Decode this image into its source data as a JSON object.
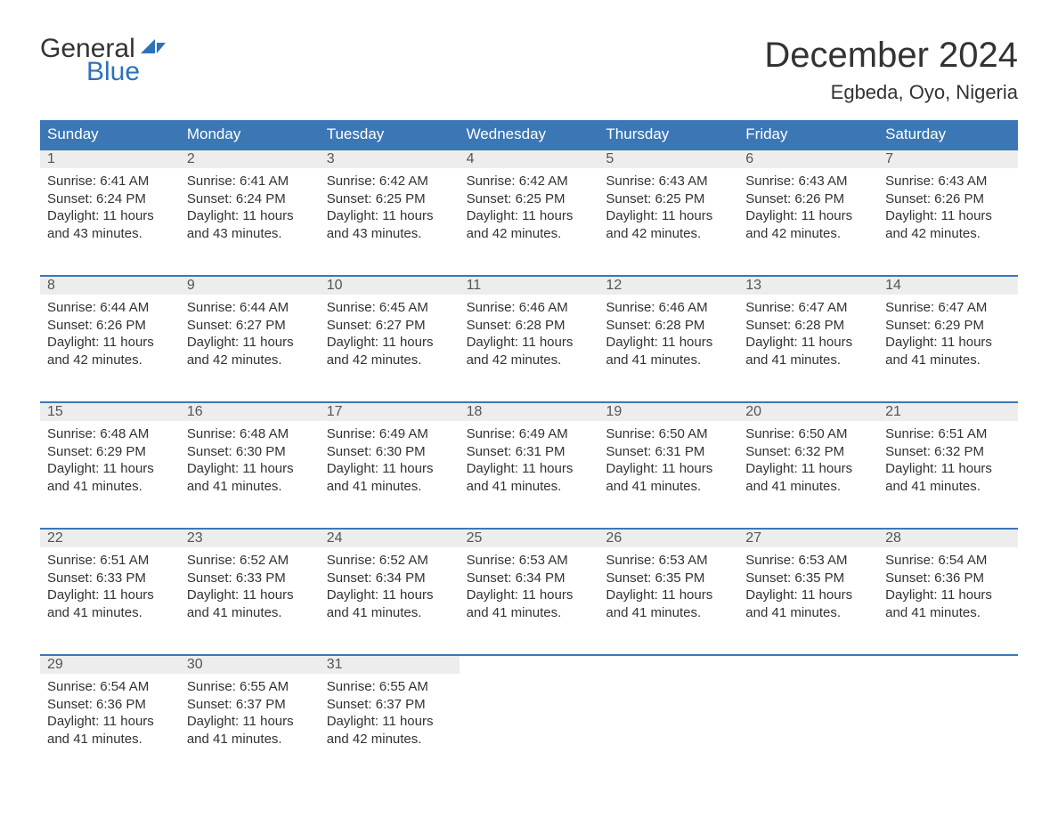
{
  "logo": {
    "text1": "General",
    "text2": "Blue"
  },
  "title": "December 2024",
  "location": "Egbeda, Oyo, Nigeria",
  "colors": {
    "header_bg": "#3b77b5",
    "header_text": "#ffffff",
    "date_bar_bg": "#ededed",
    "date_text": "#555555",
    "body_text": "#333333",
    "logo_blue": "#2d72b8",
    "week_border": "#3b77b5",
    "background": "#ffffff"
  },
  "typography": {
    "title_fontsize": 40,
    "location_fontsize": 22,
    "logo_fontsize": 30,
    "dayheader_fontsize": 17,
    "date_fontsize": 16,
    "body_fontsize": 15
  },
  "layout": {
    "columns": 7,
    "rows": 5,
    "cell_min_height": 118
  },
  "day_names": [
    "Sunday",
    "Monday",
    "Tuesday",
    "Wednesday",
    "Thursday",
    "Friday",
    "Saturday"
  ],
  "weeks": [
    [
      {
        "date": "1",
        "sunrise": "Sunrise: 6:41 AM",
        "sunset": "Sunset: 6:24 PM",
        "dl1": "Daylight: 11 hours",
        "dl2": "and 43 minutes."
      },
      {
        "date": "2",
        "sunrise": "Sunrise: 6:41 AM",
        "sunset": "Sunset: 6:24 PM",
        "dl1": "Daylight: 11 hours",
        "dl2": "and 43 minutes."
      },
      {
        "date": "3",
        "sunrise": "Sunrise: 6:42 AM",
        "sunset": "Sunset: 6:25 PM",
        "dl1": "Daylight: 11 hours",
        "dl2": "and 43 minutes."
      },
      {
        "date": "4",
        "sunrise": "Sunrise: 6:42 AM",
        "sunset": "Sunset: 6:25 PM",
        "dl1": "Daylight: 11 hours",
        "dl2": "and 42 minutes."
      },
      {
        "date": "5",
        "sunrise": "Sunrise: 6:43 AM",
        "sunset": "Sunset: 6:25 PM",
        "dl1": "Daylight: 11 hours",
        "dl2": "and 42 minutes."
      },
      {
        "date": "6",
        "sunrise": "Sunrise: 6:43 AM",
        "sunset": "Sunset: 6:26 PM",
        "dl1": "Daylight: 11 hours",
        "dl2": "and 42 minutes."
      },
      {
        "date": "7",
        "sunrise": "Sunrise: 6:43 AM",
        "sunset": "Sunset: 6:26 PM",
        "dl1": "Daylight: 11 hours",
        "dl2": "and 42 minutes."
      }
    ],
    [
      {
        "date": "8",
        "sunrise": "Sunrise: 6:44 AM",
        "sunset": "Sunset: 6:26 PM",
        "dl1": "Daylight: 11 hours",
        "dl2": "and 42 minutes."
      },
      {
        "date": "9",
        "sunrise": "Sunrise: 6:44 AM",
        "sunset": "Sunset: 6:27 PM",
        "dl1": "Daylight: 11 hours",
        "dl2": "and 42 minutes."
      },
      {
        "date": "10",
        "sunrise": "Sunrise: 6:45 AM",
        "sunset": "Sunset: 6:27 PM",
        "dl1": "Daylight: 11 hours",
        "dl2": "and 42 minutes."
      },
      {
        "date": "11",
        "sunrise": "Sunrise: 6:46 AM",
        "sunset": "Sunset: 6:28 PM",
        "dl1": "Daylight: 11 hours",
        "dl2": "and 42 minutes."
      },
      {
        "date": "12",
        "sunrise": "Sunrise: 6:46 AM",
        "sunset": "Sunset: 6:28 PM",
        "dl1": "Daylight: 11 hours",
        "dl2": "and 41 minutes."
      },
      {
        "date": "13",
        "sunrise": "Sunrise: 6:47 AM",
        "sunset": "Sunset: 6:28 PM",
        "dl1": "Daylight: 11 hours",
        "dl2": "and 41 minutes."
      },
      {
        "date": "14",
        "sunrise": "Sunrise: 6:47 AM",
        "sunset": "Sunset: 6:29 PM",
        "dl1": "Daylight: 11 hours",
        "dl2": "and 41 minutes."
      }
    ],
    [
      {
        "date": "15",
        "sunrise": "Sunrise: 6:48 AM",
        "sunset": "Sunset: 6:29 PM",
        "dl1": "Daylight: 11 hours",
        "dl2": "and 41 minutes."
      },
      {
        "date": "16",
        "sunrise": "Sunrise: 6:48 AM",
        "sunset": "Sunset: 6:30 PM",
        "dl1": "Daylight: 11 hours",
        "dl2": "and 41 minutes."
      },
      {
        "date": "17",
        "sunrise": "Sunrise: 6:49 AM",
        "sunset": "Sunset: 6:30 PM",
        "dl1": "Daylight: 11 hours",
        "dl2": "and 41 minutes."
      },
      {
        "date": "18",
        "sunrise": "Sunrise: 6:49 AM",
        "sunset": "Sunset: 6:31 PM",
        "dl1": "Daylight: 11 hours",
        "dl2": "and 41 minutes."
      },
      {
        "date": "19",
        "sunrise": "Sunrise: 6:50 AM",
        "sunset": "Sunset: 6:31 PM",
        "dl1": "Daylight: 11 hours",
        "dl2": "and 41 minutes."
      },
      {
        "date": "20",
        "sunrise": "Sunrise: 6:50 AM",
        "sunset": "Sunset: 6:32 PM",
        "dl1": "Daylight: 11 hours",
        "dl2": "and 41 minutes."
      },
      {
        "date": "21",
        "sunrise": "Sunrise: 6:51 AM",
        "sunset": "Sunset: 6:32 PM",
        "dl1": "Daylight: 11 hours",
        "dl2": "and 41 minutes."
      }
    ],
    [
      {
        "date": "22",
        "sunrise": "Sunrise: 6:51 AM",
        "sunset": "Sunset: 6:33 PM",
        "dl1": "Daylight: 11 hours",
        "dl2": "and 41 minutes."
      },
      {
        "date": "23",
        "sunrise": "Sunrise: 6:52 AM",
        "sunset": "Sunset: 6:33 PM",
        "dl1": "Daylight: 11 hours",
        "dl2": "and 41 minutes."
      },
      {
        "date": "24",
        "sunrise": "Sunrise: 6:52 AM",
        "sunset": "Sunset: 6:34 PM",
        "dl1": "Daylight: 11 hours",
        "dl2": "and 41 minutes."
      },
      {
        "date": "25",
        "sunrise": "Sunrise: 6:53 AM",
        "sunset": "Sunset: 6:34 PM",
        "dl1": "Daylight: 11 hours",
        "dl2": "and 41 minutes."
      },
      {
        "date": "26",
        "sunrise": "Sunrise: 6:53 AM",
        "sunset": "Sunset: 6:35 PM",
        "dl1": "Daylight: 11 hours",
        "dl2": "and 41 minutes."
      },
      {
        "date": "27",
        "sunrise": "Sunrise: 6:53 AM",
        "sunset": "Sunset: 6:35 PM",
        "dl1": "Daylight: 11 hours",
        "dl2": "and 41 minutes."
      },
      {
        "date": "28",
        "sunrise": "Sunrise: 6:54 AM",
        "sunset": "Sunset: 6:36 PM",
        "dl1": "Daylight: 11 hours",
        "dl2": "and 41 minutes."
      }
    ],
    [
      {
        "date": "29",
        "sunrise": "Sunrise: 6:54 AM",
        "sunset": "Sunset: 6:36 PM",
        "dl1": "Daylight: 11 hours",
        "dl2": "and 41 minutes."
      },
      {
        "date": "30",
        "sunrise": "Sunrise: 6:55 AM",
        "sunset": "Sunset: 6:37 PM",
        "dl1": "Daylight: 11 hours",
        "dl2": "and 41 minutes."
      },
      {
        "date": "31",
        "sunrise": "Sunrise: 6:55 AM",
        "sunset": "Sunset: 6:37 PM",
        "dl1": "Daylight: 11 hours",
        "dl2": "and 42 minutes."
      },
      null,
      null,
      null,
      null
    ]
  ]
}
